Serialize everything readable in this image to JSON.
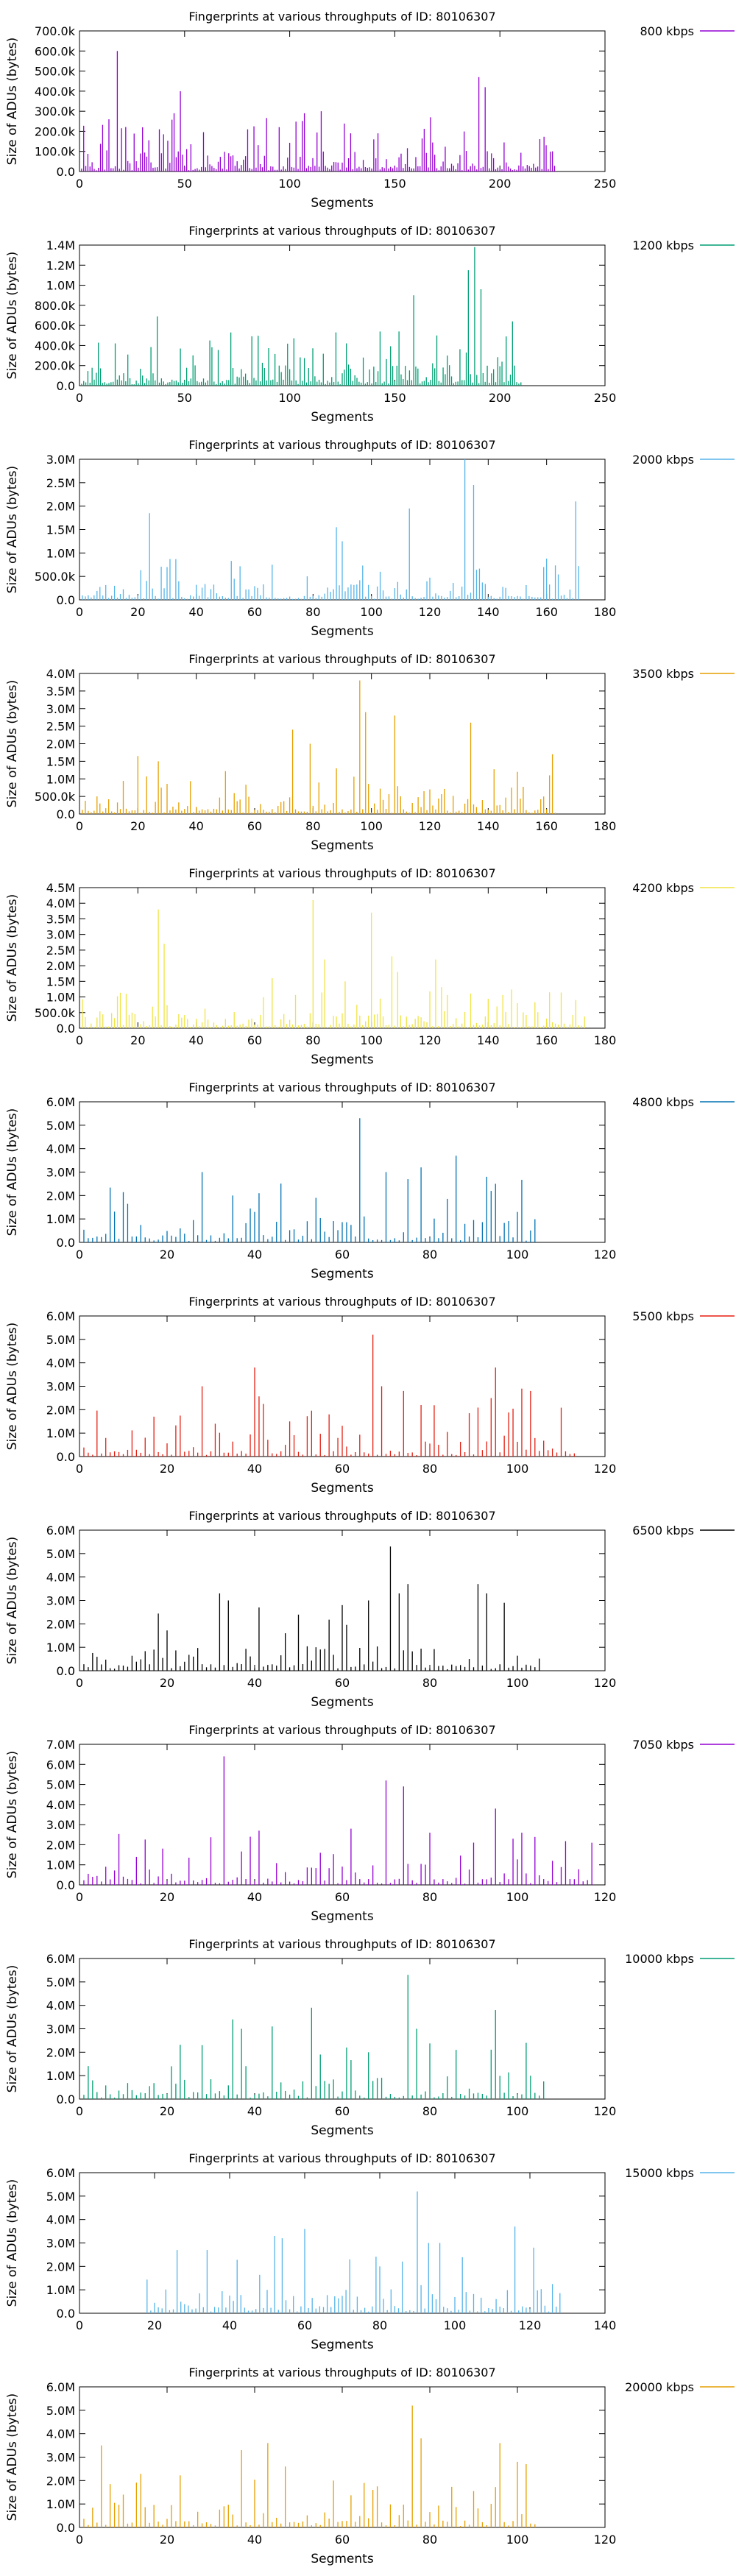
{
  "chart_data": [
    {
      "type": "bar",
      "title": "Fingerprints at various throughputs of ID: 80106307",
      "xlabel": "Segments",
      "ylabel": "Size of ADUs (bytes)",
      "xlim": [
        0,
        250
      ],
      "xticks": [
        0,
        50,
        100,
        150,
        200,
        250
      ],
      "ylim": [
        0,
        700000
      ],
      "yticks": [
        0,
        100000,
        200000,
        300000,
        400000,
        500000,
        600000,
        700000
      ],
      "ytick_labels": [
        "0.0",
        "100.0k",
        "200.0k",
        "300.0k",
        "400.0k",
        "500.0k",
        "600.0k",
        "700.0k"
      ],
      "series": [
        {
          "name": "800 kbps",
          "color": "#9400d3"
        }
      ],
      "n": 226,
      "seed": 1,
      "base": 30000,
      "spikes": [
        [
          18,
          600000
        ],
        [
          48,
          400000
        ],
        [
          45,
          290000
        ],
        [
          14,
          260000
        ],
        [
          115,
          300000
        ],
        [
          107,
          290000
        ],
        [
          190,
          470000
        ],
        [
          193,
          420000
        ],
        [
          167,
          270000
        ],
        [
          129,
          190000
        ],
        [
          80,
          210000
        ],
        [
          140,
          160000
        ],
        [
          30,
          220000
        ]
      ],
      "legend": "right"
    },
    {
      "type": "bar",
      "title": "Fingerprints at various throughputs of ID: 80106307",
      "xlabel": "Segments",
      "ylabel": "Size of ADUs (bytes)",
      "xlim": [
        0,
        250
      ],
      "xticks": [
        0,
        50,
        100,
        150,
        200,
        250
      ],
      "ylim": [
        0,
        1400000
      ],
      "yticks": [
        0,
        200000,
        400000,
        600000,
        800000,
        1000000,
        1200000,
        1400000
      ],
      "ytick_labels": [
        "0.0",
        "200.0k",
        "400.0k",
        "600.0k",
        "800.0k",
        "1.0M",
        "1.2M",
        "1.4M"
      ],
      "series": [
        {
          "name": "1200 kbps",
          "color": "#009e73"
        }
      ],
      "n": 210,
      "seed": 2,
      "base": 60000,
      "spikes": [
        [
          37,
          690000
        ],
        [
          62,
          450000
        ],
        [
          48,
          370000
        ],
        [
          23,
          310000
        ],
        [
          159,
          900000
        ],
        [
          170,
          500000
        ],
        [
          185,
          1150000
        ],
        [
          188,
          1380000
        ],
        [
          191,
          960000
        ],
        [
          206,
          640000
        ],
        [
          152,
          540000
        ],
        [
          135,
          280000
        ],
        [
          95,
          200000
        ]
      ],
      "legend": "right"
    },
    {
      "type": "bar",
      "title": "Fingerprints at various throughputs of ID: 80106307",
      "xlabel": "Segments",
      "ylabel": "Size of ADUs (bytes)",
      "xlim": [
        0,
        180
      ],
      "xticks": [
        0,
        20,
        40,
        60,
        80,
        100,
        120,
        140,
        160,
        180
      ],
      "ylim": [
        0,
        3000000
      ],
      "yticks": [
        0,
        500000,
        1000000,
        1500000,
        2000000,
        2500000,
        3000000
      ],
      "ytick_labels": [
        "0.0",
        "500.0k",
        "1.0M",
        "1.5M",
        "2.0M",
        "2.5M",
        "3.0M"
      ],
      "series": [
        {
          "name": "2000 kbps",
          "color": "#56b4e9"
        }
      ],
      "n": 171,
      "seed": 3,
      "base": 100000,
      "spikes": [
        [
          24,
          1850000
        ],
        [
          88,
          1550000
        ],
        [
          90,
          1250000
        ],
        [
          113,
          1950000
        ],
        [
          132,
          3000000
        ],
        [
          135,
          2450000
        ],
        [
          170,
          2100000
        ],
        [
          30,
          700000
        ],
        [
          66,
          750000
        ],
        [
          103,
          600000
        ]
      ],
      "legend": "right"
    },
    {
      "type": "bar",
      "title": "Fingerprints at various throughputs of ID: 80106307",
      "xlabel": "Segments",
      "ylabel": "Size of ADUs (bytes)",
      "xlim": [
        0,
        180
      ],
      "xticks": [
        0,
        20,
        40,
        60,
        80,
        100,
        120,
        140,
        160,
        180
      ],
      "ylim": [
        0,
        4000000
      ],
      "yticks": [
        0,
        500000,
        1000000,
        1500000,
        2000000,
        2500000,
        3000000,
        3500000,
        4000000
      ],
      "ytick_labels": [
        "0.0",
        "500.0k",
        "1.0M",
        "1.5M",
        "2.0M",
        "2.5M",
        "3.0M",
        "3.5M",
        "4.0M"
      ],
      "series": [
        {
          "name": "3500 kbps",
          "color": "#e69f00"
        }
      ],
      "n": 163,
      "seed": 4,
      "base": 150000,
      "spikes": [
        [
          20,
          1650000
        ],
        [
          27,
          1500000
        ],
        [
          73,
          2400000
        ],
        [
          79,
          2000000
        ],
        [
          96,
          3800000
        ],
        [
          98,
          2900000
        ],
        [
          108,
          2800000
        ],
        [
          134,
          2600000
        ],
        [
          150,
          1200000
        ],
        [
          162,
          1700000
        ],
        [
          88,
          1300000
        ],
        [
          120,
          700000
        ]
      ],
      "legend": "right"
    },
    {
      "type": "bar",
      "title": "Fingerprints at various throughputs of ID: 80106307",
      "xlabel": "Segments",
      "ylabel": "Size of ADUs (bytes)",
      "xlim": [
        0,
        180
      ],
      "xticks": [
        0,
        20,
        40,
        60,
        80,
        100,
        120,
        140,
        160,
        180
      ],
      "ylim": [
        0,
        4500000
      ],
      "yticks": [
        0,
        500000,
        1000000,
        1500000,
        2000000,
        2500000,
        3000000,
        3500000,
        4000000,
        4500000
      ],
      "ytick_labels": [
        "0.0",
        "500.0k",
        "1.0M",
        "1.5M",
        "2.0M",
        "2.5M",
        "3.0M",
        "3.5M",
        "4.0M",
        "4.5M"
      ],
      "series": [
        {
          "name": "4200 kbps",
          "color": "#f0e442"
        }
      ],
      "n": 173,
      "seed": 5,
      "base": 150000,
      "spikes": [
        [
          27,
          3800000
        ],
        [
          29,
          2700000
        ],
        [
          80,
          4100000
        ],
        [
          84,
          2200000
        ],
        [
          100,
          3700000
        ],
        [
          107,
          2300000
        ],
        [
          109,
          1800000
        ],
        [
          122,
          2200000
        ],
        [
          66,
          1600000
        ],
        [
          91,
          1500000
        ],
        [
          170,
          900000
        ],
        [
          150,
          800000
        ]
      ],
      "legend": "right"
    },
    {
      "type": "bar",
      "title": "Fingerprints at various throughputs of ID: 80106307",
      "xlabel": "Segments",
      "ylabel": "Size of ADUs (bytes)",
      "xlim": [
        0,
        120
      ],
      "xticks": [
        0,
        20,
        40,
        60,
        80,
        100,
        120
      ],
      "ylim": [
        0,
        6000000
      ],
      "yticks": [
        0,
        1000000,
        2000000,
        3000000,
        4000000,
        5000000,
        6000000
      ],
      "ytick_labels": [
        "0.0",
        "1.0M",
        "2.0M",
        "3.0M",
        "4.0M",
        "5.0M",
        "6.0M"
      ],
      "series": [
        {
          "name": "4800 kbps",
          "color": "#0072b2"
        }
      ],
      "n": 104,
      "seed": 6,
      "base": 300000,
      "spikes": [
        [
          28,
          3000000
        ],
        [
          35,
          2000000
        ],
        [
          54,
          1900000
        ],
        [
          64,
          5300000
        ],
        [
          70,
          3000000
        ],
        [
          75,
          2700000
        ],
        [
          78,
          3200000
        ],
        [
          86,
          3700000
        ],
        [
          93,
          2800000
        ],
        [
          95,
          2500000
        ],
        [
          100,
          1300000
        ],
        [
          40,
          1300000
        ]
      ],
      "legend": "right"
    },
    {
      "type": "bar",
      "title": "Fingerprints at various throughputs of ID: 80106307",
      "xlabel": "Segments",
      "ylabel": "Size of ADUs (bytes)",
      "xlim": [
        0,
        120
      ],
      "xticks": [
        0,
        20,
        40,
        60,
        80,
        100,
        120
      ],
      "ylim": [
        0,
        6000000
      ],
      "yticks": [
        0,
        1000000,
        2000000,
        3000000,
        4000000,
        5000000,
        6000000
      ],
      "ytick_labels": [
        "0.0",
        "1.0M",
        "2.0M",
        "3.0M",
        "4.0M",
        "5.0M",
        "6.0M"
      ],
      "series": [
        {
          "name": "5500 kbps",
          "color": "#e51e10"
        }
      ],
      "n": 113,
      "seed": 7,
      "base": 300000,
      "spikes": [
        [
          28,
          3000000
        ],
        [
          40,
          3800000
        ],
        [
          57,
          1800000
        ],
        [
          67,
          5200000
        ],
        [
          69,
          3000000
        ],
        [
          74,
          2800000
        ],
        [
          78,
          2200000
        ],
        [
          95,
          3800000
        ],
        [
          101,
          2900000
        ],
        [
          103,
          2800000
        ],
        [
          48,
          1500000
        ],
        [
          31,
          1400000
        ]
      ],
      "legend": "right"
    },
    {
      "type": "bar",
      "title": "Fingerprints at various throughputs of ID: 80106307",
      "xlabel": "Segments",
      "ylabel": "Size of ADUs (bytes)",
      "xlim": [
        0,
        120
      ],
      "xticks": [
        0,
        20,
        40,
        60,
        80,
        100,
        120
      ],
      "ylim": [
        0,
        6000000
      ],
      "yticks": [
        0,
        1000000,
        2000000,
        3000000,
        4000000,
        5000000,
        6000000
      ],
      "ytick_labels": [
        "0.0",
        "1.0M",
        "2.0M",
        "3.0M",
        "4.0M",
        "5.0M",
        "6.0M"
      ],
      "series": [
        {
          "name": "6500 kbps",
          "color": "#000000"
        }
      ],
      "n": 105,
      "seed": 8,
      "base": 300000,
      "spikes": [
        [
          32,
          3300000
        ],
        [
          34,
          3000000
        ],
        [
          41,
          2700000
        ],
        [
          60,
          2800000
        ],
        [
          66,
          3000000
        ],
        [
          71,
          5300000
        ],
        [
          73,
          3300000
        ],
        [
          75,
          3700000
        ],
        [
          91,
          3700000
        ],
        [
          93,
          3300000
        ],
        [
          97,
          2900000
        ],
        [
          47,
          1600000
        ]
      ],
      "legend": "right"
    },
    {
      "type": "bar",
      "title": "Fingerprints at various throughputs of ID: 80106307",
      "xlabel": "Segments",
      "ylabel": "Size of ADUs (bytes)",
      "xlim": [
        0,
        120
      ],
      "xticks": [
        0,
        20,
        40,
        60,
        80,
        100,
        120
      ],
      "ylim": [
        0,
        7000000
      ],
      "yticks": [
        0,
        1000000,
        2000000,
        3000000,
        4000000,
        5000000,
        6000000,
        7000000
      ],
      "ytick_labels": [
        "0.0",
        "1.0M",
        "2.0M",
        "3.0M",
        "4.0M",
        "5.0M",
        "6.0M",
        "7.0M"
      ],
      "series": [
        {
          "name": "7050 kbps",
          "color": "#9400d3"
        }
      ],
      "n": 117,
      "seed": 9,
      "base": 300000,
      "spikes": [
        [
          33,
          6400000
        ],
        [
          39,
          2400000
        ],
        [
          41,
          2700000
        ],
        [
          62,
          2800000
        ],
        [
          70,
          5200000
        ],
        [
          74,
          4900000
        ],
        [
          80,
          2600000
        ],
        [
          95,
          3800000
        ],
        [
          99,
          2300000
        ],
        [
          101,
          2600000
        ],
        [
          55,
          1600000
        ],
        [
          108,
          1200000
        ]
      ],
      "legend": "right"
    },
    {
      "type": "bar",
      "title": "Fingerprints at various throughputs of ID: 80106307",
      "xlabel": "Segments",
      "ylabel": "Size of ADUs (bytes)",
      "xlim": [
        0,
        120
      ],
      "xticks": [
        0,
        20,
        40,
        60,
        80,
        100,
        120
      ],
      "ylim": [
        0,
        6000000
      ],
      "yticks": [
        0,
        1000000,
        2000000,
        3000000,
        4000000,
        5000000,
        6000000
      ],
      "ytick_labels": [
        "0.0",
        "1.0M",
        "2.0M",
        "3.0M",
        "4.0M",
        "5.0M",
        "6.0M"
      ],
      "series": [
        {
          "name": "10000 kbps",
          "color": "#009e73"
        }
      ],
      "n": 106,
      "seed": 10,
      "base": 300000,
      "spikes": [
        [
          35,
          3400000
        ],
        [
          37,
          3000000
        ],
        [
          44,
          3100000
        ],
        [
          53,
          3900000
        ],
        [
          75,
          5300000
        ],
        [
          77,
          3000000
        ],
        [
          95,
          3800000
        ],
        [
          102,
          2400000
        ],
        [
          21,
          1400000
        ],
        [
          61,
          2200000
        ],
        [
          66,
          2000000
        ],
        [
          86,
          2100000
        ]
      ],
      "legend": "right"
    },
    {
      "type": "bar",
      "title": "Fingerprints at various throughputs of ID: 80106307",
      "xlabel": "Segments",
      "ylabel": "Size of ADUs (bytes)",
      "xlim": [
        0,
        140
      ],
      "xticks": [
        0,
        20,
        40,
        60,
        80,
        100,
        120,
        140
      ],
      "ylim": [
        0,
        6000000
      ],
      "yticks": [
        0,
        1000000,
        2000000,
        3000000,
        4000000,
        5000000,
        6000000
      ],
      "ytick_labels": [
        "0.0",
        "1.0M",
        "2.0M",
        "3.0M",
        "4.0M",
        "5.0M",
        "6.0M"
      ],
      "series": [
        {
          "name": "15000 kbps",
          "color": "#56b4e9"
        }
      ],
      "n": 128,
      "seed": 11,
      "base": 300000,
      "spikes": [
        [
          26,
          2700000
        ],
        [
          34,
          2700000
        ],
        [
          52,
          3300000
        ],
        [
          54,
          3200000
        ],
        [
          60,
          3600000
        ],
        [
          90,
          5200000
        ],
        [
          93,
          3000000
        ],
        [
          96,
          3000000
        ],
        [
          116,
          3700000
        ],
        [
          121,
          2800000
        ],
        [
          72,
          2300000
        ],
        [
          80,
          2000000
        ]
      ],
      "legend": "right",
      "start": 18
    },
    {
      "type": "bar",
      "title": "Fingerprints at various throughputs of ID: 80106307",
      "xlabel": "Segments",
      "ylabel": "Size of ADUs (bytes)",
      "xlim": [
        0,
        120
      ],
      "xticks": [
        0,
        20,
        40,
        60,
        80,
        100,
        120
      ],
      "ylim": [
        0,
        6000000
      ],
      "yticks": [
        0,
        1000000,
        2000000,
        3000000,
        4000000,
        5000000,
        6000000
      ],
      "ytick_labels": [
        "0.0",
        "1.0M",
        "2.0M",
        "3.0M",
        "4.0M",
        "5.0M",
        "6.0M"
      ],
      "series": [
        {
          "name": "20000 kbps",
          "color": "#e69f00"
        }
      ],
      "n": 104,
      "seed": 12,
      "base": 300000,
      "spikes": [
        [
          5,
          3500000
        ],
        [
          37,
          3300000
        ],
        [
          43,
          3600000
        ],
        [
          47,
          2600000
        ],
        [
          76,
          5200000
        ],
        [
          78,
          3800000
        ],
        [
          96,
          3600000
        ],
        [
          100,
          2800000
        ],
        [
          102,
          2700000
        ],
        [
          58,
          2000000
        ],
        [
          10,
          1400000
        ],
        [
          65,
          1900000
        ]
      ],
      "legend": "right"
    }
  ]
}
